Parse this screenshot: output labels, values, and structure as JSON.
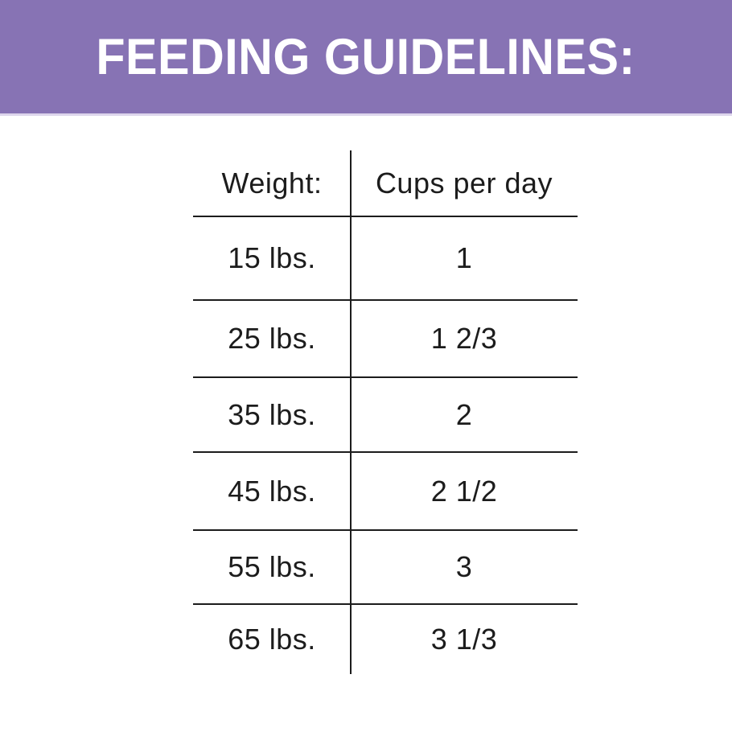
{
  "banner": {
    "title": "FEEDING GUIDELINES:",
    "background_color": "#8773b4",
    "text_color": "#ffffff"
  },
  "table": {
    "line_color": "#1c1c1c",
    "headers": {
      "weight": "Weight:",
      "cups": "Cups per day"
    },
    "rows": [
      {
        "weight": "15 lbs.",
        "cups": "1"
      },
      {
        "weight": "25 lbs.",
        "cups": "1 2/3"
      },
      {
        "weight": "35 lbs.",
        "cups": "2"
      },
      {
        "weight": "45 lbs.",
        "cups": "2 1/2"
      },
      {
        "weight": "55 lbs.",
        "cups": "3"
      },
      {
        "weight": "65 lbs.",
        "cups": "3 1/3"
      }
    ]
  },
  "chart_data": {
    "type": "table",
    "title": "FEEDING GUIDELINES:",
    "columns": [
      "Weight:",
      "Cups per day"
    ],
    "rows": [
      [
        "15 lbs.",
        "1"
      ],
      [
        "25 lbs.",
        "1 2/3"
      ],
      [
        "35 lbs.",
        "2"
      ],
      [
        "45 lbs.",
        "2 1/2"
      ],
      [
        "55 lbs.",
        "3"
      ],
      [
        "65 lbs.",
        "3 1/3"
      ]
    ],
    "weights_lbs": [
      15,
      25,
      35,
      45,
      55,
      65
    ],
    "cups_per_day": [
      1,
      1.667,
      2,
      2.5,
      3,
      3.333
    ]
  }
}
